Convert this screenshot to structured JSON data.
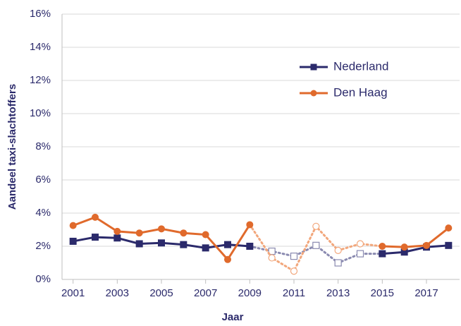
{
  "chart_data": {
    "type": "line",
    "x_label": "Jaar",
    "y_label": "Aandeel taxi-slachtoffers",
    "x": [
      2001,
      2002,
      2003,
      2004,
      2005,
      2006,
      2007,
      2008,
      2009,
      2010,
      2011,
      2012,
      2013,
      2014,
      2015,
      2016,
      2017,
      2018
    ],
    "xlim": [
      2000.5,
      2018.5
    ],
    "xticks": [
      2001,
      2003,
      2005,
      2007,
      2009,
      2011,
      2013,
      2015,
      2017
    ],
    "ylim": [
      0,
      16
    ],
    "yticks": [
      {
        "value": 0,
        "label": "0%"
      },
      {
        "value": 2,
        "label": "2%"
      },
      {
        "value": 4,
        "label": "4%"
      },
      {
        "value": 6,
        "label": "6%"
      },
      {
        "value": 8,
        "label": "8%"
      },
      {
        "value": 10,
        "label": "10%"
      },
      {
        "value": 12,
        "label": "12%"
      },
      {
        "value": 14,
        "label": "14%"
      },
      {
        "value": 16,
        "label": "16%"
      }
    ],
    "grid": true,
    "dotted_from": 2009,
    "dotted_to": 2015,
    "series": [
      {
        "name": "Nederland",
        "color": "#2b2a6b",
        "dotted_color": "#8a8ab0",
        "marker": "square",
        "values": [
          2.3,
          2.55,
          2.5,
          2.15,
          2.2,
          2.1,
          1.9,
          2.1,
          2.0,
          1.7,
          1.4,
          2.05,
          1.0,
          1.55,
          1.55,
          1.65,
          1.95,
          2.05
        ]
      },
      {
        "name": "Den Haag",
        "color": "#e06a2c",
        "dotted_color": "#f2a77c",
        "marker": "circle",
        "values": [
          3.25,
          3.75,
          2.9,
          2.8,
          3.05,
          2.8,
          2.7,
          1.2,
          3.3,
          1.3,
          0.5,
          3.2,
          1.75,
          2.15,
          2.0,
          1.95,
          2.05,
          3.1
        ]
      }
    ]
  }
}
